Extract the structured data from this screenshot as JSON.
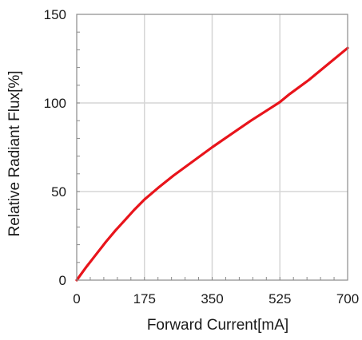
{
  "chart_data": {
    "type": "line",
    "title": "",
    "xlabel": "Forward Current[mA]",
    "ylabel": "Relative Radiant Flux[%]",
    "xlim": [
      0,
      700
    ],
    "ylim": [
      0,
      150
    ],
    "x_ticks": [
      "0",
      "175",
      "350",
      "525",
      "700"
    ],
    "y_ticks": [
      "0",
      "50",
      "100",
      "150"
    ],
    "grid": true,
    "legend": "none",
    "series": [
      {
        "color": "#e8141b",
        "x": [
          0,
          25,
          50,
          75,
          100,
          125,
          150,
          175,
          210,
          250,
          300,
          350,
          400,
          450,
          500,
          525,
          550,
          600,
          650,
          700
        ],
        "y": [
          0,
          7.5,
          14.5,
          21.5,
          28,
          34,
          40,
          45.5,
          52,
          59,
          67,
          75,
          82.5,
          90,
          97,
          100.5,
          105,
          113,
          122,
          131
        ]
      }
    ]
  }
}
